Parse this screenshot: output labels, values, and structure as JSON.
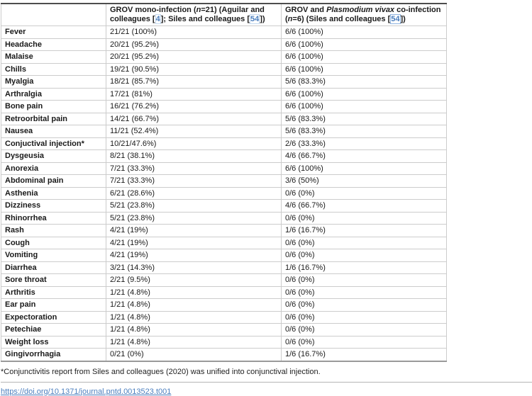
{
  "table": {
    "header": {
      "symptom_col": "",
      "mono_col_segments": [
        {
          "t": "GROV mono-infection ("
        },
        {
          "t": "n",
          "style": "italic"
        },
        {
          "t": "=21) (Aguilar and colleagues ["
        },
        {
          "t": "4",
          "style": "link"
        },
        {
          "t": "]; Siles and colleagues ["
        },
        {
          "t": "54",
          "style": "link"
        },
        {
          "t": "])"
        }
      ],
      "co_col_segments": [
        {
          "t": "GROV and "
        },
        {
          "t": "Plasmodium vivax",
          "style": "italic"
        },
        {
          "t": " co-infection ("
        },
        {
          "t": "n",
          "style": "italic"
        },
        {
          "t": "=6) (Siles and colleagues ["
        },
        {
          "t": "54",
          "style": "link-boxed"
        },
        {
          "t": "])"
        }
      ]
    },
    "rows": [
      {
        "symptom": "Fever",
        "mono": "21/21 (100%)",
        "co": "6/6 (100%)"
      },
      {
        "symptom": "Headache",
        "mono": "20/21 (95.2%)",
        "co": "6/6 (100%)"
      },
      {
        "symptom": "Malaise",
        "mono": "20/21 (95.2%)",
        "co": "6/6 (100%)"
      },
      {
        "symptom": "Chills",
        "mono": "19/21 (90.5%)",
        "co": "6/6 (100%)"
      },
      {
        "symptom": "Myalgia",
        "mono": "18/21 (85.7%)",
        "co": "5/6 (83.3%)"
      },
      {
        "symptom": "Arthralgia",
        "mono": "17/21 (81%)",
        "co": "6/6 (100%)"
      },
      {
        "symptom": "Bone pain",
        "mono": "16/21 (76.2%)",
        "co": "6/6 (100%)"
      },
      {
        "symptom": "Retroorbital pain",
        "mono": "14/21 (66.7%)",
        "co": "5/6 (83.3%)"
      },
      {
        "symptom": "Nausea",
        "mono": "11/21 (52.4%)",
        "co": "5/6 (83.3%)"
      },
      {
        "symptom": "Conjuctival injection*",
        "mono": "10/21/47.6%)",
        "co": "2/6 (33.3%)"
      },
      {
        "symptom": "Dysgeusia",
        "mono": "8/21 (38.1%)",
        "co": "4/6 (66.7%)"
      },
      {
        "symptom": "Anorexia",
        "mono": "7/21 (33.3%)",
        "co": "6/6 (100%)"
      },
      {
        "symptom": "Abdominal pain",
        "mono": "7/21 (33.3%)",
        "co": "3/6 (50%)"
      },
      {
        "symptom": "Asthenia",
        "mono": "6/21 (28.6%)",
        "co": "0/6 (0%)"
      },
      {
        "symptom": "Dizziness",
        "mono": "5/21 (23.8%)",
        "co": "4/6 (66.7%)"
      },
      {
        "symptom": "Rhinorrhea",
        "mono": "5/21 (23.8%)",
        "co": "0/6 (0%)"
      },
      {
        "symptom": "Rash",
        "mono": "4/21 (19%)",
        "co": "1/6 (16.7%)"
      },
      {
        "symptom": "Cough",
        "mono": "4/21 (19%)",
        "co": "0/6 (0%)"
      },
      {
        "symptom": "Vomiting",
        "mono": "4/21 (19%)",
        "co": "0/6 (0%)"
      },
      {
        "symptom": "Diarrhea",
        "mono": "3/21 (14.3%)",
        "co": "1/6 (16.7%)"
      },
      {
        "symptom": "Sore throat",
        "mono": "2/21 (9.5%)",
        "co": "0/6 (0%)"
      },
      {
        "symptom": "Arthritis",
        "mono": "1/21 (4.8%)",
        "co": "0/6 (0%)"
      },
      {
        "symptom": "Ear pain",
        "mono": "1/21 (4.8%)",
        "co": "0/6 (0%)"
      },
      {
        "symptom": "Expectoration",
        "mono": "1/21 (4.8%)",
        "co": "0/6 (0%)"
      },
      {
        "symptom": "Petechiae",
        "mono": "1/21 (4.8%)",
        "co": "0/6 (0%)"
      },
      {
        "symptom": "Weight loss",
        "mono": "1/21 (4.8%)",
        "co": "0/6 (0%)"
      },
      {
        "symptom": "Gingivorrhagia",
        "mono": "0/21 (0%)",
        "co": "1/6 (16.7%)"
      }
    ]
  },
  "footer": {
    "note": "*Conjunctivitis report from Siles and colleagues (2020) was unified into conjunctival injection.",
    "doi": "https://doi.org/10.1371/journal.pntd.0013523.t001"
  },
  "colors": {
    "link_blue": "#4a7ebe",
    "border_light": "#cccccc",
    "border_top": "#4d4d4d"
  }
}
